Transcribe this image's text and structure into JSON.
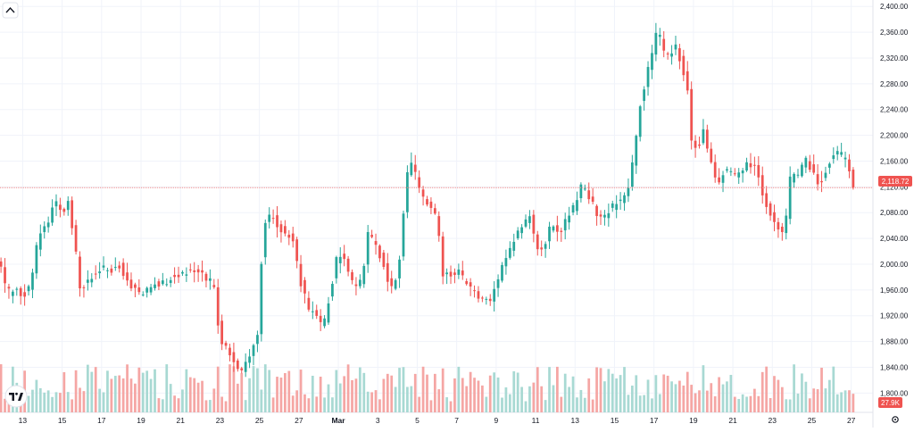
{
  "colors": {
    "up": "#26a69a",
    "down": "#ef5350",
    "up_volume": "#a8d9d3",
    "down_volume": "#f5a6a4",
    "grid": "#f0f3fa",
    "price_line": "#f28b8b",
    "axis_text": "#131722"
  },
  "icons": {
    "collapse": "chevron-up-icon",
    "watermark": "tradingview-logo",
    "settings": "gear-icon"
  },
  "chart_data": {
    "type": "candlestick",
    "y_axis": {
      "position": "right",
      "range": [
        1770,
        2410
      ],
      "ticks": [
        2400,
        2360,
        2320,
        2280,
        2240,
        2200,
        2160,
        2120,
        2080,
        2040,
        2000,
        1960,
        1920,
        1880,
        1840,
        1800
      ],
      "tick_labels": [
        "2,400.00",
        "2,360.00",
        "2,320.00",
        "2,280.00",
        "2,240.00",
        "2,200.00",
        "2,160.00",
        "2,120.00",
        "2,080.00",
        "2,040.00",
        "2,000.00",
        "1,960.00",
        "1,920.00",
        "1,880.00",
        "1,840.00",
        "1,800.00"
      ]
    },
    "x_axis": {
      "day_range": [
        11.85,
        56.1
      ],
      "ticks": [
        {
          "day": 13,
          "label": "13"
        },
        {
          "day": 15,
          "label": "15"
        },
        {
          "day": 17,
          "label": "17"
        },
        {
          "day": 19,
          "label": "19"
        },
        {
          "day": 21,
          "label": "21"
        },
        {
          "day": 23,
          "label": "23"
        },
        {
          "day": 25,
          "label": "25"
        },
        {
          "day": 27,
          "label": "27"
        },
        {
          "day": 29,
          "label": "Mar"
        },
        {
          "day": 31,
          "label": "3"
        },
        {
          "day": 33,
          "label": "5"
        },
        {
          "day": 35,
          "label": "7"
        },
        {
          "day": 37,
          "label": "9"
        },
        {
          "day": 39,
          "label": "11"
        },
        {
          "day": 41,
          "label": "13"
        },
        {
          "day": 43,
          "label": "15"
        },
        {
          "day": 45,
          "label": "17"
        },
        {
          "day": 47,
          "label": "19"
        },
        {
          "day": 49,
          "label": "21"
        },
        {
          "day": 51,
          "label": "23"
        },
        {
          "day": 53,
          "label": "25"
        },
        {
          "day": 55,
          "label": "27"
        }
      ]
    },
    "last_price": 2118.72,
    "last_price_label": "2,118.72",
    "volume_label": "27.9K",
    "anchors": [
      {
        "day": 11.9,
        "price": 1995
      },
      {
        "day": 12.2,
        "price": 1955
      },
      {
        "day": 12.6,
        "price": 1960
      },
      {
        "day": 13.0,
        "price": 1952
      },
      {
        "day": 13.4,
        "price": 1965
      },
      {
        "day": 13.8,
        "price": 2045
      },
      {
        "day": 14.2,
        "price": 2060
      },
      {
        "day": 14.6,
        "price": 2098
      },
      {
        "day": 15.0,
        "price": 2080
      },
      {
        "day": 15.3,
        "price": 2095
      },
      {
        "day": 15.6,
        "price": 2040
      },
      {
        "day": 15.9,
        "price": 1965
      },
      {
        "day": 16.3,
        "price": 1975
      },
      {
        "day": 16.7,
        "price": 1985
      },
      {
        "day": 17.1,
        "price": 1995
      },
      {
        "day": 17.5,
        "price": 1990
      },
      {
        "day": 17.9,
        "price": 1998
      },
      {
        "day": 18.3,
        "price": 1975
      },
      {
        "day": 18.7,
        "price": 1960
      },
      {
        "day": 19.1,
        "price": 1955
      },
      {
        "day": 19.5,
        "price": 1965
      },
      {
        "day": 19.9,
        "price": 1970
      },
      {
        "day": 20.3,
        "price": 1975
      },
      {
        "day": 20.7,
        "price": 1980
      },
      {
        "day": 21.1,
        "price": 1985
      },
      {
        "day": 21.5,
        "price": 1990
      },
      {
        "day": 21.9,
        "price": 1985
      },
      {
        "day": 22.3,
        "price": 1980
      },
      {
        "day": 22.7,
        "price": 1965
      },
      {
        "day": 23.0,
        "price": 1880
      },
      {
        "day": 23.4,
        "price": 1870
      },
      {
        "day": 23.8,
        "price": 1840
      },
      {
        "day": 24.1,
        "price": 1830
      },
      {
        "day": 24.5,
        "price": 1860
      },
      {
        "day": 24.9,
        "price": 1895
      },
      {
        "day": 25.2,
        "price": 2060
      },
      {
        "day": 25.6,
        "price": 2075
      },
      {
        "day": 26.0,
        "price": 2055
      },
      {
        "day": 26.4,
        "price": 2050
      },
      {
        "day": 26.7,
        "price": 2040
      },
      {
        "day": 27.1,
        "price": 1970
      },
      {
        "day": 27.5,
        "price": 1930
      },
      {
        "day": 27.9,
        "price": 1925
      },
      {
        "day": 28.2,
        "price": 1900
      },
      {
        "day": 28.6,
        "price": 1960
      },
      {
        "day": 29.0,
        "price": 2020
      },
      {
        "day": 29.4,
        "price": 2000
      },
      {
        "day": 29.8,
        "price": 1960
      },
      {
        "day": 30.2,
        "price": 1975
      },
      {
        "day": 30.5,
        "price": 2045
      },
      {
        "day": 30.9,
        "price": 2030
      },
      {
        "day": 31.3,
        "price": 2000
      },
      {
        "day": 31.6,
        "price": 1965
      },
      {
        "day": 32.0,
        "price": 1975
      },
      {
        "day": 32.3,
        "price": 2080
      },
      {
        "day": 32.6,
        "price": 2170
      },
      {
        "day": 32.9,
        "price": 2140
      },
      {
        "day": 33.2,
        "price": 2110
      },
      {
        "day": 33.6,
        "price": 2090
      },
      {
        "day": 34.0,
        "price": 2075
      },
      {
        "day": 34.3,
        "price": 1985
      },
      {
        "day": 34.7,
        "price": 1985
      },
      {
        "day": 35.1,
        "price": 1988
      },
      {
        "day": 35.5,
        "price": 1970
      },
      {
        "day": 35.9,
        "price": 1955
      },
      {
        "day": 36.3,
        "price": 1950
      },
      {
        "day": 36.7,
        "price": 1945
      },
      {
        "day": 37.1,
        "price": 1980
      },
      {
        "day": 37.5,
        "price": 2010
      },
      {
        "day": 37.9,
        "price": 2040
      },
      {
        "day": 38.3,
        "price": 2060
      },
      {
        "day": 38.7,
        "price": 2075
      },
      {
        "day": 39.0,
        "price": 2030
      },
      {
        "day": 39.4,
        "price": 2020
      },
      {
        "day": 39.8,
        "price": 2065
      },
      {
        "day": 40.2,
        "price": 2040
      },
      {
        "day": 40.6,
        "price": 2075
      },
      {
        "day": 41.0,
        "price": 2090
      },
      {
        "day": 41.3,
        "price": 2120
      },
      {
        "day": 41.7,
        "price": 2105
      },
      {
        "day": 42.1,
        "price": 2080
      },
      {
        "day": 42.5,
        "price": 2075
      },
      {
        "day": 42.9,
        "price": 2090
      },
      {
        "day": 43.3,
        "price": 2100
      },
      {
        "day": 43.7,
        "price": 2120
      },
      {
        "day": 44.0,
        "price": 2175
      },
      {
        "day": 44.3,
        "price": 2250
      },
      {
        "day": 44.6,
        "price": 2290
      },
      {
        "day": 44.9,
        "price": 2330
      },
      {
        "day": 45.2,
        "price": 2365
      },
      {
        "day": 45.5,
        "price": 2330
      },
      {
        "day": 45.8,
        "price": 2325
      },
      {
        "day": 46.1,
        "price": 2335
      },
      {
        "day": 46.4,
        "price": 2310
      },
      {
        "day": 46.7,
        "price": 2270
      },
      {
        "day": 46.9,
        "price": 2195
      },
      {
        "day": 47.2,
        "price": 2175
      },
      {
        "day": 47.5,
        "price": 2210
      },
      {
        "day": 47.8,
        "price": 2165
      },
      {
        "day": 48.2,
        "price": 2120
      },
      {
        "day": 48.6,
        "price": 2150
      },
      {
        "day": 49.0,
        "price": 2135
      },
      {
        "day": 49.4,
        "price": 2150
      },
      {
        "day": 49.8,
        "price": 2155
      },
      {
        "day": 50.2,
        "price": 2150
      },
      {
        "day": 50.5,
        "price": 2105
      },
      {
        "day": 50.9,
        "price": 2075
      },
      {
        "day": 51.2,
        "price": 2060
      },
      {
        "day": 51.6,
        "price": 2045
      },
      {
        "day": 51.9,
        "price": 2130
      },
      {
        "day": 52.3,
        "price": 2140
      },
      {
        "day": 52.7,
        "price": 2160
      },
      {
        "day": 53.0,
        "price": 2145
      },
      {
        "day": 53.4,
        "price": 2125
      },
      {
        "day": 53.8,
        "price": 2155
      },
      {
        "day": 54.2,
        "price": 2175
      },
      {
        "day": 54.5,
        "price": 2168
      },
      {
        "day": 54.8,
        "price": 2165
      },
      {
        "day": 55.1,
        "price": 2118
      }
    ]
  }
}
